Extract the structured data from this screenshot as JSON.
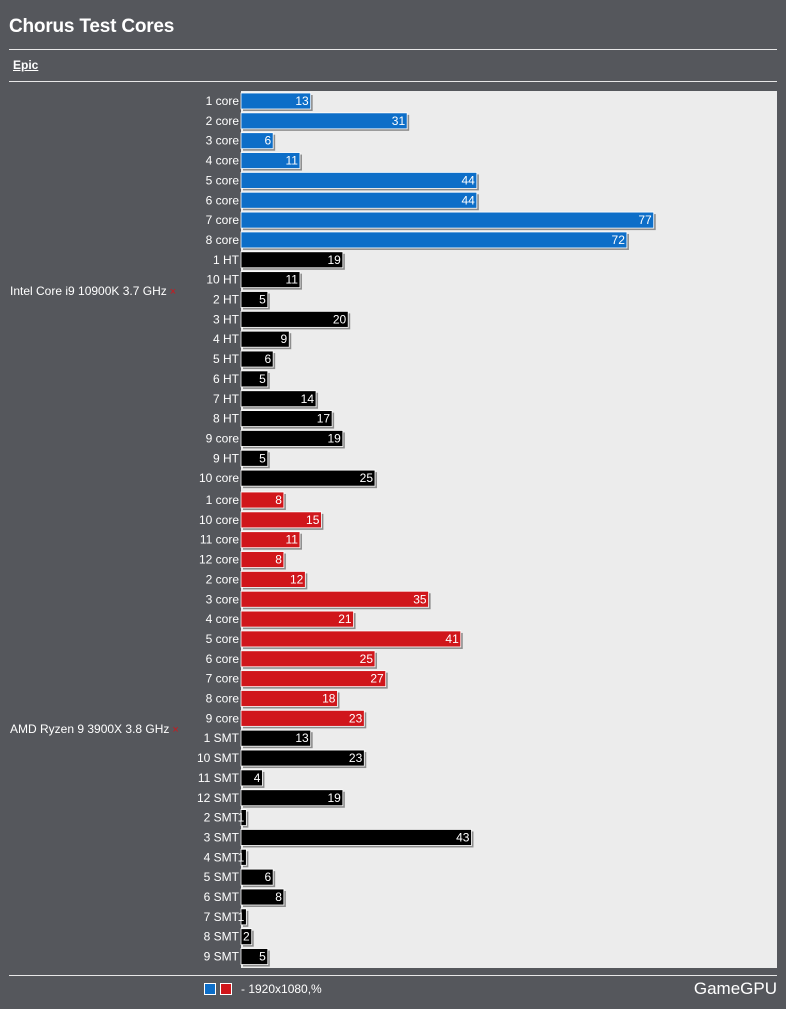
{
  "title": "Chorus Test Cores",
  "preset": "Epic",
  "footer": {
    "legend_text": "- 1920x1080,%",
    "brand": "GameGPU"
  },
  "colors": {
    "background": "#55575c",
    "plot_bg": "#ececec",
    "intel_core": "#0d6ec8",
    "amd_core": "#d0161b",
    "thread": "#000000",
    "remove_mark": "#d0161b"
  },
  "chart_data": {
    "type": "bar",
    "orientation": "horizontal",
    "xlim": [
      0,
      100
    ],
    "groups": [
      {
        "name": "Intel Core i9 10900K 3.7 GHz",
        "remove_mark": "×",
        "bars": [
          {
            "label": "1 core",
            "value": 13,
            "kind": "core"
          },
          {
            "label": "2 core",
            "value": 31,
            "kind": "core"
          },
          {
            "label": "3 core",
            "value": 6,
            "kind": "core"
          },
          {
            "label": "4 core",
            "value": 11,
            "kind": "core"
          },
          {
            "label": "5 core",
            "value": 44,
            "kind": "core"
          },
          {
            "label": "6 core",
            "value": 44,
            "kind": "core"
          },
          {
            "label": "7 core",
            "value": 77,
            "kind": "core"
          },
          {
            "label": "8 core",
            "value": 72,
            "kind": "core"
          },
          {
            "label": "1 HT",
            "value": 19,
            "kind": "thread"
          },
          {
            "label": "10 HT",
            "value": 11,
            "kind": "thread"
          },
          {
            "label": "2 HT",
            "value": 5,
            "kind": "thread"
          },
          {
            "label": "3 HT",
            "value": 20,
            "kind": "thread"
          },
          {
            "label": "4 HT",
            "value": 9,
            "kind": "thread"
          },
          {
            "label": "5 HT",
            "value": 6,
            "kind": "thread"
          },
          {
            "label": "6 HT",
            "value": 5,
            "kind": "thread"
          },
          {
            "label": "7 HT",
            "value": 14,
            "kind": "thread"
          },
          {
            "label": "8 HT",
            "value": 17,
            "kind": "thread"
          },
          {
            "label": "9 core",
            "value": 19,
            "kind": "thread"
          },
          {
            "label": "9 HT",
            "value": 5,
            "kind": "thread"
          },
          {
            "label": "10 core",
            "value": 25,
            "kind": "thread"
          }
        ]
      },
      {
        "name": "AMD Ryzen 9 3900X 3.8 GHz",
        "remove_mark": "×",
        "bars": [
          {
            "label": "1 core",
            "value": 8,
            "kind": "core"
          },
          {
            "label": "10 core",
            "value": 15,
            "kind": "core"
          },
          {
            "label": "11 core",
            "value": 11,
            "kind": "core"
          },
          {
            "label": "12 core",
            "value": 8,
            "kind": "core"
          },
          {
            "label": "2 core",
            "value": 12,
            "kind": "core"
          },
          {
            "label": "3 core",
            "value": 35,
            "kind": "core"
          },
          {
            "label": "4 core",
            "value": 21,
            "kind": "core"
          },
          {
            "label": "5 core",
            "value": 41,
            "kind": "core"
          },
          {
            "label": "6 core",
            "value": 25,
            "kind": "core"
          },
          {
            "label": "7 core",
            "value": 27,
            "kind": "core"
          },
          {
            "label": "8 core",
            "value": 18,
            "kind": "core"
          },
          {
            "label": "9 core",
            "value": 23,
            "kind": "core"
          },
          {
            "label": "1 SMT",
            "value": 13,
            "kind": "thread"
          },
          {
            "label": "10 SMT",
            "value": 23,
            "kind": "thread"
          },
          {
            "label": "11 SMT",
            "value": 4,
            "kind": "thread"
          },
          {
            "label": "12 SMT",
            "value": 19,
            "kind": "thread"
          },
          {
            "label": "2 SMT",
            "value": 1,
            "kind": "thread"
          },
          {
            "label": "3 SMT",
            "value": 43,
            "kind": "thread"
          },
          {
            "label": "4 SMT",
            "value": 1,
            "kind": "thread"
          },
          {
            "label": "5 SMT",
            "value": 6,
            "kind": "thread"
          },
          {
            "label": "6 SMT",
            "value": 8,
            "kind": "thread"
          },
          {
            "label": "7 SMT",
            "value": 1,
            "kind": "thread"
          },
          {
            "label": "8 SMT",
            "value": 2,
            "kind": "thread"
          },
          {
            "label": "9 SMT",
            "value": 5,
            "kind": "thread"
          }
        ]
      }
    ]
  }
}
